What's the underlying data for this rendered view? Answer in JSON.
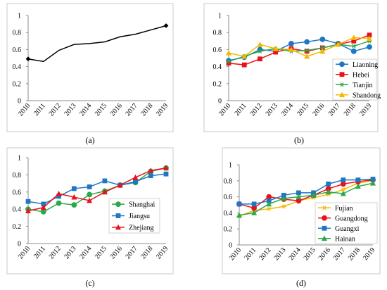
{
  "chart_data": [
    {
      "panel": "a",
      "caption": "(a)",
      "type": "line",
      "x": [
        "2010",
        "2011",
        "2012",
        "2013",
        "2014",
        "2015",
        "2016",
        "2017",
        "2018",
        "2019"
      ],
      "ylim": [
        0,
        1
      ],
      "yticks": [
        "0",
        "0.2",
        "0.4",
        "0.6",
        "0.8",
        "1"
      ],
      "legend": "none",
      "series": [
        {
          "values": [
            0.49,
            0.46,
            0.59,
            0.66,
            0.67,
            0.69,
            0.75,
            0.78,
            0.83,
            0.88
          ],
          "color": "#000000",
          "marker": "diamond",
          "endpoint_markers_only": true
        }
      ]
    },
    {
      "panel": "b",
      "caption": "(b)",
      "type": "line",
      "x": [
        "2010",
        "2011",
        "2012",
        "2013",
        "2014",
        "2015",
        "2016",
        "2017",
        "2018",
        "2019"
      ],
      "ylim": [
        0,
        1
      ],
      "yticks": [
        "0",
        "0.2",
        "0.4",
        "0.6",
        "0.8",
        "1"
      ],
      "legend": "right",
      "series": [
        {
          "name": "Liaoning",
          "values": [
            0.47,
            0.51,
            0.6,
            0.58,
            0.67,
            0.69,
            0.72,
            0.67,
            0.58,
            0.63
          ],
          "color": "#1f77c4",
          "marker": "circle"
        },
        {
          "name": "Hebei",
          "values": [
            0.44,
            0.42,
            0.49,
            0.57,
            0.61,
            0.58,
            0.62,
            0.66,
            0.7,
            0.77
          ],
          "color": "#e8121b",
          "marker": "square"
        },
        {
          "name": "Tianjin",
          "values": [
            0.46,
            0.52,
            0.58,
            0.61,
            0.58,
            0.59,
            0.62,
            0.66,
            0.64,
            0.7
          ],
          "color": "#2aa84a",
          "marker": "star"
        },
        {
          "name": "Shandong",
          "values": [
            0.56,
            0.52,
            0.66,
            0.61,
            0.6,
            0.52,
            0.58,
            0.66,
            0.74,
            0.73
          ],
          "color": "#f5b800",
          "marker": "triangle"
        }
      ]
    },
    {
      "panel": "c",
      "caption": "(c)",
      "type": "line",
      "x": [
        "2010",
        "2011",
        "2012",
        "2013",
        "2014",
        "2015",
        "2016",
        "2017",
        "2018",
        "2019"
      ],
      "ylim": [
        0,
        1
      ],
      "yticks": [
        "0",
        "0.2",
        "0.4",
        "0.6",
        "0.8",
        "1"
      ],
      "legend": "right",
      "series": [
        {
          "name": "Shanghai",
          "values": [
            0.4,
            0.37,
            0.47,
            0.45,
            0.57,
            0.61,
            0.68,
            0.71,
            0.84,
            0.88
          ],
          "color": "#2aa84a",
          "marker": "circle"
        },
        {
          "name": "Jiangsu",
          "values": [
            0.49,
            0.46,
            0.55,
            0.64,
            0.66,
            0.73,
            0.68,
            0.72,
            0.79,
            0.81
          ],
          "color": "#1f77c4",
          "marker": "square"
        },
        {
          "name": "Zhejiang",
          "values": [
            0.38,
            0.42,
            0.58,
            0.54,
            0.5,
            0.6,
            0.68,
            0.77,
            0.85,
            0.88
          ],
          "color": "#e8121b",
          "marker": "triangle"
        }
      ]
    },
    {
      "panel": "d",
      "caption": "(d)",
      "type": "line",
      "x": [
        "2010",
        "2011",
        "2012",
        "2013",
        "2014",
        "2015",
        "2016",
        "2017",
        "2018",
        "2019"
      ],
      "ylim": [
        0,
        1
      ],
      "yticks": [
        "0",
        "0.2",
        "0.4",
        "0.6",
        "0.8",
        "1"
      ],
      "legend": "right",
      "series": [
        {
          "name": "Fujian",
          "values": [
            0.36,
            0.43,
            0.45,
            0.48,
            0.55,
            0.59,
            0.63,
            0.69,
            0.77,
            0.8
          ],
          "color": "#f5b800",
          "marker": "star"
        },
        {
          "name": "Guangdong",
          "values": [
            0.51,
            0.46,
            0.6,
            0.57,
            0.55,
            0.62,
            0.7,
            0.76,
            0.79,
            0.81
          ],
          "color": "#e8121b",
          "marker": "circle"
        },
        {
          "name": "Guangxi",
          "values": [
            0.51,
            0.51,
            0.55,
            0.62,
            0.65,
            0.65,
            0.76,
            0.81,
            0.81,
            0.82
          ],
          "color": "#1f77c4",
          "marker": "square"
        },
        {
          "name": "Hainan",
          "values": [
            0.37,
            0.4,
            0.51,
            0.58,
            0.6,
            0.62,
            0.66,
            0.64,
            0.73,
            0.77
          ],
          "color": "#2aa84a",
          "marker": "triangle"
        }
      ]
    }
  ]
}
